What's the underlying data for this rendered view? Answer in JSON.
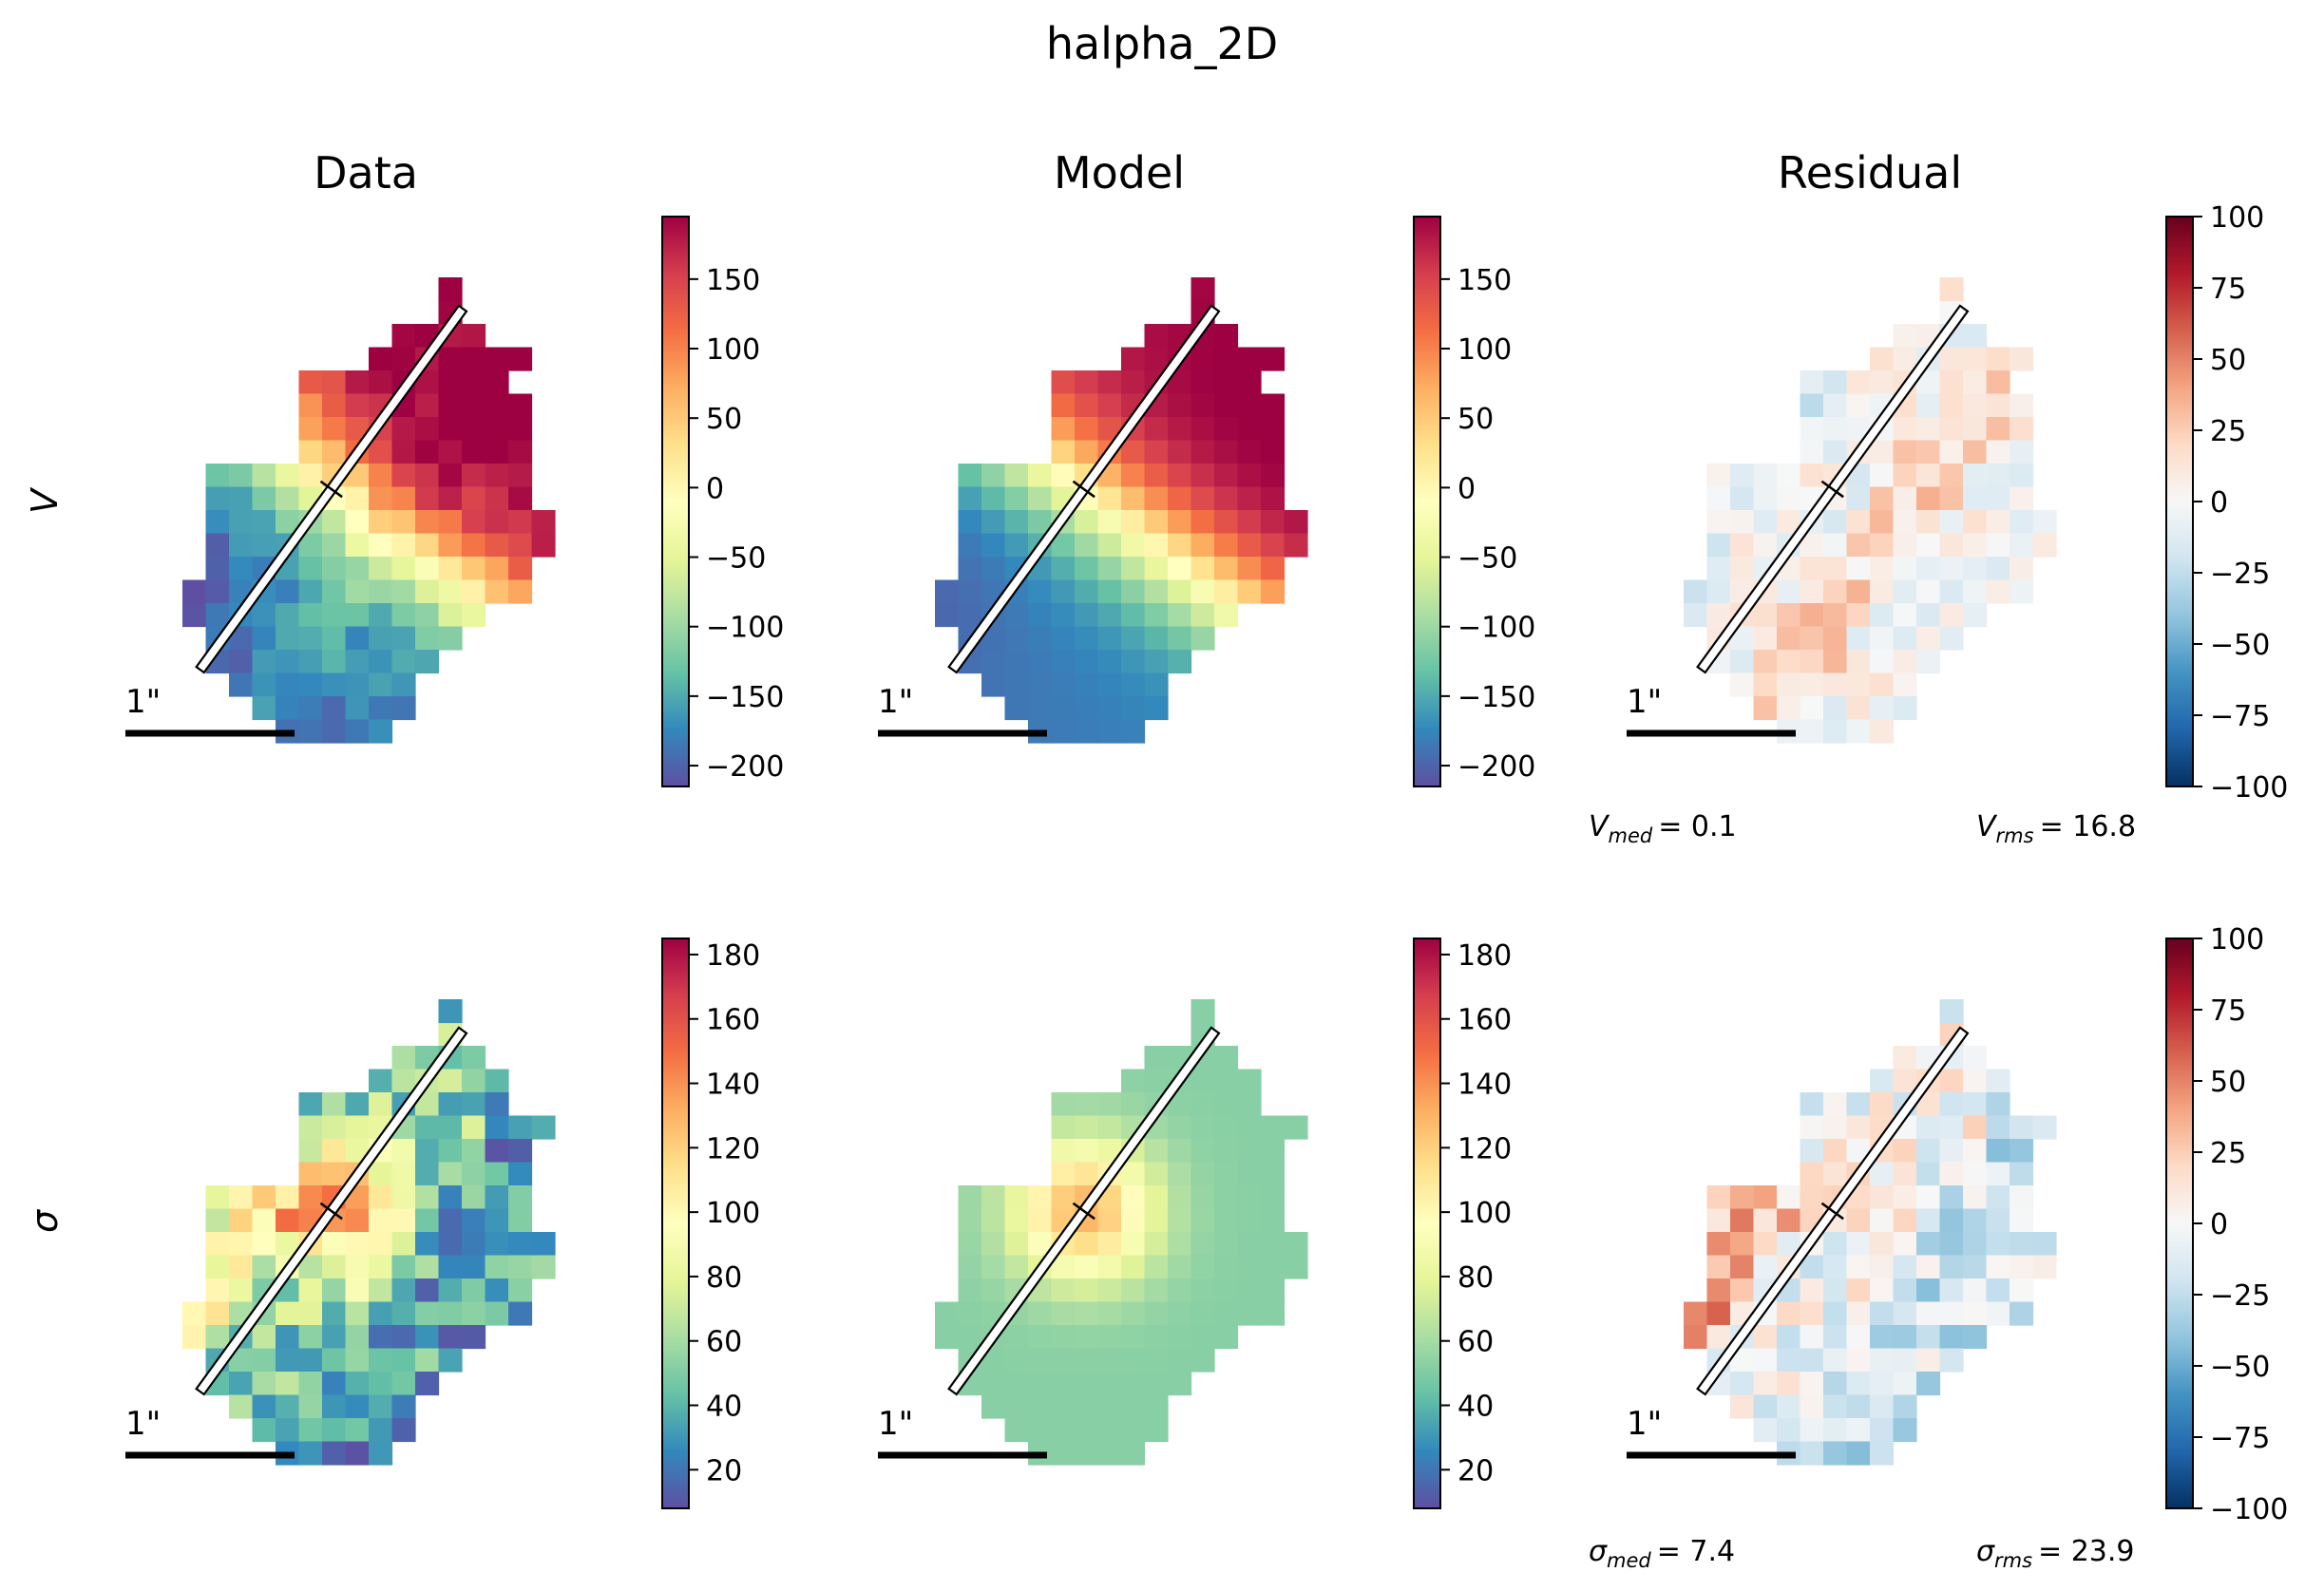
{
  "figure": {
    "title": "halpha_2D",
    "column_titles": [
      "Data",
      "Model",
      "Residual"
    ],
    "row_labels": [
      "V",
      "σ"
    ],
    "scale_bar_label": "1\""
  },
  "colors": {
    "spectral_r": [
      "#5e4fa2",
      "#3288bd",
      "#66c2a5",
      "#abdda4",
      "#e6f598",
      "#ffffbf",
      "#fee08b",
      "#fdae61",
      "#f46d43",
      "#d53e4f",
      "#9e0142"
    ],
    "rdbu_r": [
      "#053061",
      "#2166ac",
      "#4393c3",
      "#92c5de",
      "#d1e5f0",
      "#f7f7f7",
      "#fddbc7",
      "#f4a582",
      "#d6604d",
      "#b2182b",
      "#67001f"
    ]
  },
  "chart_data": [
    {
      "type": "heatmap",
      "row": "V",
      "panel": "Data",
      "colormap": "Spectral_r",
      "vmin": -215,
      "vmax": 195,
      "colorbar_ticks": [
        "150",
        "100",
        "50",
        "0",
        "−50",
        "−100",
        "−150",
        "−200"
      ]
    },
    {
      "type": "heatmap",
      "row": "V",
      "panel": "Model",
      "colormap": "Spectral_r",
      "vmin": -215,
      "vmax": 195,
      "colorbar_ticks": [
        "150",
        "100",
        "50",
        "0",
        "−50",
        "−100",
        "−150",
        "−200"
      ]
    },
    {
      "type": "heatmap",
      "row": "V",
      "panel": "Residual",
      "colormap": "RdBu_r",
      "vmin": -100,
      "vmax": 100,
      "colorbar_ticks": [
        "100",
        "75",
        "50",
        "25",
        "0",
        "−25",
        "−50",
        "−75",
        "−100"
      ],
      "stats": {
        "median_label": "V",
        "median_sub": "med",
        "median_value": "= 0.1",
        "rms_label": "V",
        "rms_sub": "rms",
        "rms_value": "= 16.8"
      }
    },
    {
      "type": "heatmap",
      "row": "σ",
      "panel": "Data",
      "colormap": "Spectral_r",
      "vmin": 8,
      "vmax": 185,
      "colorbar_ticks": [
        "180",
        "160",
        "140",
        "120",
        "100",
        "80",
        "60",
        "40",
        "20"
      ]
    },
    {
      "type": "heatmap",
      "row": "σ",
      "panel": "Model",
      "colormap": "Spectral_r",
      "vmin": 8,
      "vmax": 185,
      "colorbar_ticks": [
        "180",
        "160",
        "140",
        "120",
        "100",
        "80",
        "60",
        "40",
        "20"
      ]
    },
    {
      "type": "heatmap",
      "row": "σ",
      "panel": "Residual",
      "colormap": "RdBu_r",
      "vmin": -100,
      "vmax": 100,
      "colorbar_ticks": [
        "100",
        "75",
        "50",
        "25",
        "0",
        "−25",
        "−50",
        "−75",
        "−100"
      ],
      "stats": {
        "median_label": "σ",
        "median_sub": "med",
        "median_value": "= 7.4",
        "rms_label": "σ",
        "rms_sub": "rms",
        "rms_value": "= 23.9"
      }
    }
  ]
}
